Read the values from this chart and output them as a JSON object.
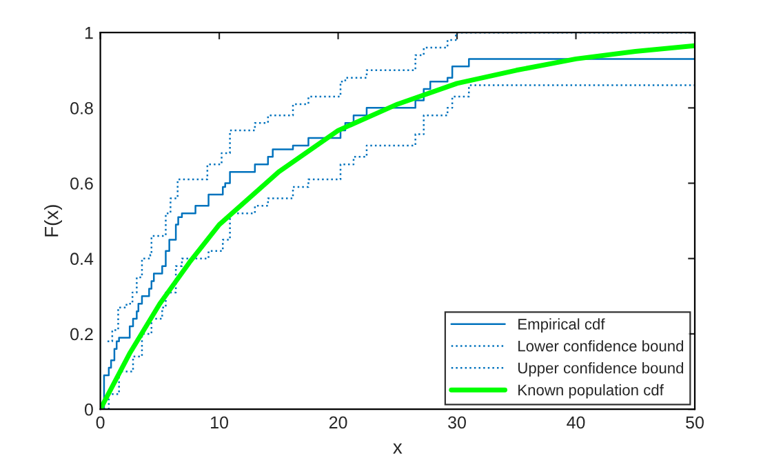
{
  "chart_data": {
    "type": "step",
    "xlabel": "x",
    "ylabel": "F(x)",
    "xlim": [
      0,
      50
    ],
    "ylim": [
      0,
      1
    ],
    "xticks": [
      0,
      10,
      20,
      30,
      40,
      50
    ],
    "yticks": [
      0,
      0.2,
      0.4,
      0.6,
      0.8,
      1
    ],
    "grid": false,
    "legend": "bottom right",
    "series": [
      {
        "name": "Empirical cdf",
        "color": "#0072bd",
        "line_style": "solid",
        "x": [
          0,
          0.31,
          0.71,
          0.9,
          1.18,
          1.37,
          1.57,
          2.47,
          2.75,
          3.06,
          3.2,
          3.5,
          4.1,
          4.3,
          4.5,
          5.2,
          5.5,
          5.8,
          6.35,
          6.55,
          6.86,
          8.0,
          9.1,
          10.3,
          10.5,
          10.9,
          13.0,
          14.1,
          14.5,
          16.2,
          17.5,
          20.2,
          20.6,
          21.3,
          22.4,
          26.5,
          27.2,
          27.75,
          29.2,
          29.6,
          31.0,
          50
        ],
        "values": [
          0,
          0.09,
          0.11,
          0.13,
          0.16,
          0.18,
          0.19,
          0.22,
          0.24,
          0.26,
          0.28,
          0.3,
          0.32,
          0.34,
          0.36,
          0.38,
          0.42,
          0.45,
          0.49,
          0.51,
          0.52,
          0.54,
          0.57,
          0.59,
          0.6,
          0.63,
          0.65,
          0.67,
          0.69,
          0.7,
          0.72,
          0.74,
          0.76,
          0.78,
          0.8,
          0.82,
          0.85,
          0.87,
          0.88,
          0.91,
          0.93,
          0.93
        ]
      },
      {
        "name": "Lower confidence bound",
        "color": "#0072bd",
        "line_style": "dotted",
        "x": [
          0.31,
          0.71,
          1.57,
          2.75,
          3.5,
          4.3,
          5.2,
          5.5,
          6.35,
          6.86,
          9.1,
          10.3,
          10.9,
          13.0,
          14.1,
          16.2,
          17.5,
          20.2,
          21.3,
          22.4,
          26.5,
          27.2,
          29.2,
          29.6,
          31.0,
          50
        ],
        "values": [
          0,
          0.04,
          0.1,
          0.14,
          0.2,
          0.24,
          0.27,
          0.31,
          0.38,
          0.4,
          0.42,
          0.45,
          0.52,
          0.54,
          0.56,
          0.59,
          0.61,
          0.65,
          0.67,
          0.7,
          0.73,
          0.78,
          0.8,
          0.83,
          0.86,
          0.86
        ]
      },
      {
        "name": "Upper confidence bound",
        "color": "#0072bd",
        "line_style": "dotted",
        "x": [
          0.6,
          1.0,
          1.5,
          2.2,
          2.7,
          3.06,
          3.5,
          4.2,
          4.3,
          5.1,
          5.5,
          5.9,
          6.5,
          9.0,
          10.2,
          10.9,
          13.0,
          14.1,
          16.2,
          17.5,
          20.2,
          20.6,
          22.4,
          26.5,
          27.2,
          29.2,
          29.9,
          50
        ],
        "values": [
          0.18,
          0.21,
          0.27,
          0.28,
          0.31,
          0.35,
          0.4,
          0.41,
          0.46,
          0.46,
          0.52,
          0.56,
          0.61,
          0.65,
          0.68,
          0.74,
          0.76,
          0.78,
          0.81,
          0.83,
          0.87,
          0.88,
          0.9,
          0.94,
          0.96,
          0.98,
          1,
          1
        ]
      },
      {
        "name": "Known population cdf",
        "color": "#00ff00",
        "type": "line",
        "line_style": "solid",
        "x": [
          0,
          2.5,
          5,
          7.5,
          10,
          15,
          20,
          25,
          30,
          35,
          40,
          45,
          50
        ],
        "values": [
          0,
          0.15,
          0.28,
          0.39,
          0.49,
          0.63,
          0.74,
          0.81,
          0.865,
          0.9,
          0.93,
          0.95,
          0.965
        ]
      }
    ]
  }
}
